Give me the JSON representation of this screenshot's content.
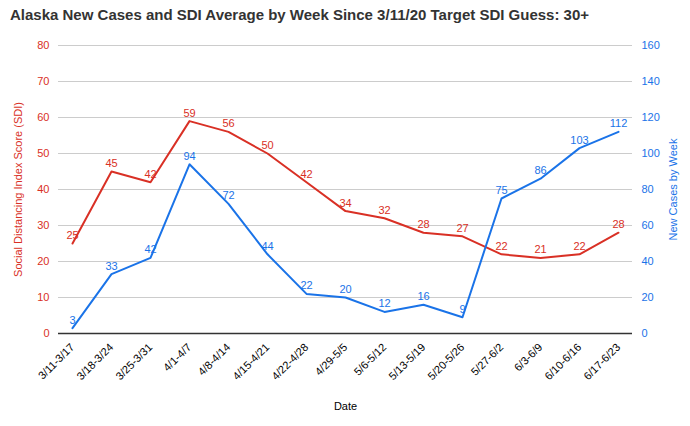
{
  "chart_data": {
    "type": "line",
    "title": "Alaska New Cases and SDI Average by Week Since 3/11/20 Target SDI Guess: 30+",
    "xlabel": "Date",
    "ylabel": "Social Distancing Index Score (SDI)",
    "y2label": "New Cases by Week",
    "categories": [
      "3/11-3/17",
      "3/18-3/24",
      "3/25-3/31",
      "4/1-4/7",
      "4/8-4/14",
      "4/15-4/21",
      "4/22-4/28",
      "4/29-5/5",
      "5/6-5/12",
      "5/13-5/19",
      "5/20-5/26",
      "5/27-6/2",
      "6/3-6/9",
      "6/10-6/16",
      "6/17-6/23"
    ],
    "series": [
      {
        "color": "#d93025",
        "values": [
          25,
          45,
          42,
          59,
          56,
          50,
          42,
          34,
          32,
          28,
          27,
          22,
          21,
          22,
          28
        ]
      },
      {
        "color": "#1a73e8",
        "values": [
          3,
          33,
          42,
          94,
          72,
          44,
          22,
          20,
          12,
          16,
          9,
          75,
          86,
          103,
          112
        ],
        "axis": "y2"
      }
    ],
    "ylim": [
      0,
      80
    ],
    "yticks": [
      0,
      10,
      20,
      30,
      40,
      50,
      60,
      70,
      80
    ],
    "y2lim": [
      0,
      160
    ],
    "y2ticks": [
      0,
      20,
      40,
      60,
      80,
      100,
      120,
      140,
      160
    ],
    "grid": true,
    "data_labels": true
  }
}
